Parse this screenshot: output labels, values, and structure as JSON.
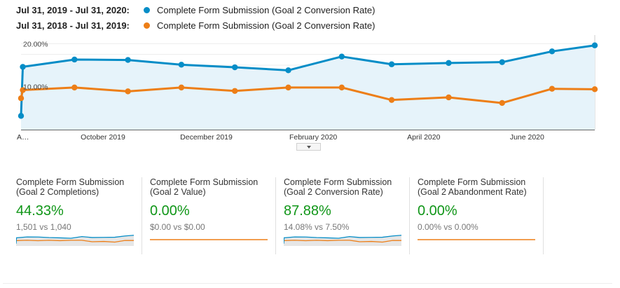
{
  "legend": [
    {
      "range": "Jul 31, 2019 - Jul 31, 2020:",
      "metric": "Complete Form Submission (Goal 2 Conversion Rate)",
      "color": "#058dc7"
    },
    {
      "range": "Jul 31, 2018 - Jul 31, 2019:",
      "metric": "Complete Form Submission (Goal 2 Conversion Rate)",
      "color": "#ed7e17"
    }
  ],
  "chart_data": {
    "type": "line",
    "y_tick_labels": [
      "20.00%",
      "10.00%"
    ],
    "y_ticks": [
      20,
      10
    ],
    "ylim": [
      0,
      22
    ],
    "x_tick_labels": [
      "A…",
      "October 2019",
      "December 2019",
      "February 2020",
      "April 2020",
      "June 2020"
    ],
    "x_tick_positions": [
      0,
      2.3,
      5.2,
      8.2,
      11.3,
      14.2
    ],
    "xlim": [
      0,
      16.1
    ],
    "grid": true,
    "series": [
      {
        "name": "Jul 31, 2019 - Jul 31, 2020",
        "color": "#058dc7",
        "fill": "#e6f3fa",
        "x": [
          0,
          0.05,
          1.5,
          3.0,
          4.5,
          6.0,
          7.5,
          9.0,
          10.4,
          12.0,
          13.5,
          14.9,
          16.1
        ],
        "y": [
          3.2,
          14.6,
          16.3,
          16.2,
          15.1,
          14.5,
          13.8,
          17.0,
          15.2,
          15.5,
          15.7,
          18.2,
          19.6
        ]
      },
      {
        "name": "Jul 31, 2018 - Jul 31, 2019",
        "color": "#ed7e17",
        "x": [
          0,
          0.05,
          1.5,
          3.0,
          4.5,
          6.0,
          7.5,
          9.0,
          10.4,
          12.0,
          13.5,
          14.9,
          16.1
        ],
        "y": [
          7.3,
          9.2,
          9.8,
          8.9,
          9.8,
          9.0,
          9.8,
          9.8,
          6.9,
          7.5,
          6.2,
          9.5,
          9.4
        ]
      }
    ]
  },
  "summary": [
    {
      "title": "Complete Form Submission (Goal 2 Completions)",
      "value": "44.33%",
      "compare": "1,501 vs 1,040",
      "spark": "trend"
    },
    {
      "title": "Complete Form Submission (Goal 2 Value)",
      "value": "0.00%",
      "compare": "$0.00 vs $0.00",
      "spark": "flat"
    },
    {
      "title": "Complete Form Submission (Goal 2 Conversion Rate)",
      "value": "87.88%",
      "compare": "14.08% vs 7.50%",
      "spark": "trend"
    },
    {
      "title": "Complete Form Submission (Goal 2 Abandonment Rate)",
      "value": "0.00%",
      "compare": "0.00% vs 0.00%",
      "spark": "flat"
    }
  ]
}
